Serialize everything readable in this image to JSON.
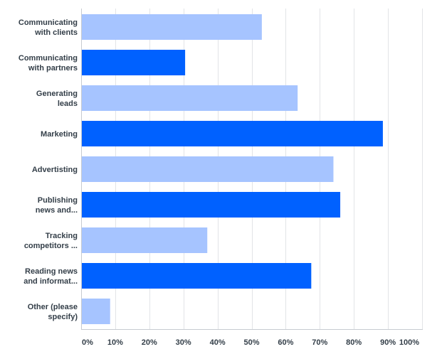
{
  "chart_data": {
    "type": "bar",
    "orientation": "horizontal",
    "categories": [
      [
        "Communicating",
        "with clients"
      ],
      [
        "Communicating",
        "with partners"
      ],
      [
        "Generating",
        "leads"
      ],
      [
        "Marketing"
      ],
      [
        "Advertisting"
      ],
      [
        "Publishing",
        "news and..."
      ],
      [
        "Tracking",
        "competitors ..."
      ],
      [
        "Reading news",
        "and informat..."
      ],
      [
        "Other (please",
        "specify)"
      ]
    ],
    "values": [
      53,
      30.5,
      63.5,
      88.5,
      74,
      76,
      37,
      67.5,
      8.5
    ],
    "xlim": [
      0,
      100
    ],
    "x_ticks": [
      "0%",
      "10%",
      "20%",
      "30%",
      "40%",
      "50%",
      "60%",
      "70%",
      "80%",
      "90%",
      "100%"
    ],
    "grid": true,
    "colors": {
      "light": "#a6c4ff",
      "dark": "#0061ff",
      "grid": "#e2e4e7",
      "axis": "#c7cbd0",
      "text": "#333e48"
    },
    "title": "",
    "xlabel": "",
    "ylabel": ""
  }
}
